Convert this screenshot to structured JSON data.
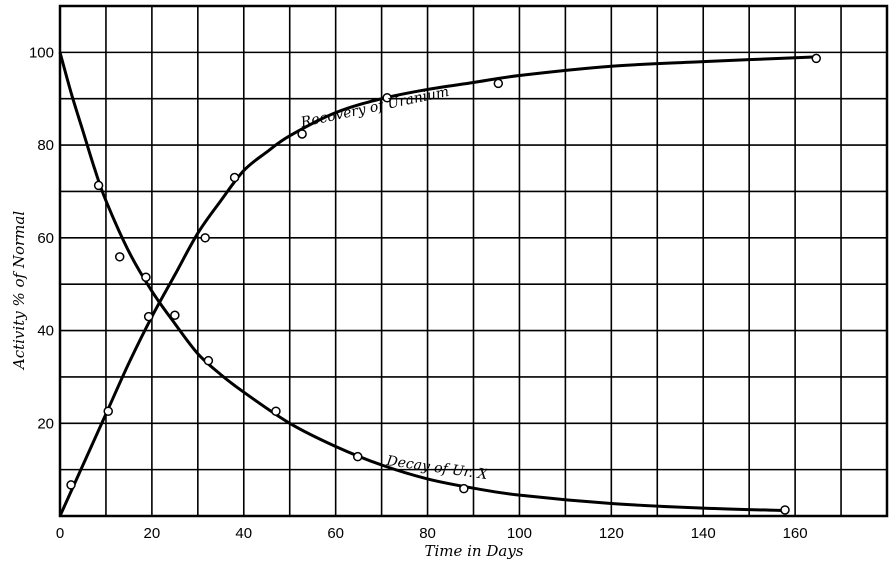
{
  "chart_data": {
    "type": "scatter",
    "title": "",
    "xlabel": "Time in Days",
    "ylabel": "Activity % of Normal",
    "xlim": [
      0,
      180
    ],
    "ylim": [
      0,
      110
    ],
    "grid": true,
    "grid_step": {
      "x": 10,
      "y": 10
    },
    "x_ticks": [
      0,
      20,
      40,
      60,
      80,
      100,
      120,
      140,
      160
    ],
    "y_ticks": [
      20,
      40,
      60,
      80,
      100
    ],
    "series": [
      {
        "name": "Recovery of Uranium",
        "points": [
          [
            2.4,
            6.7
          ],
          [
            10.5,
            22.6
          ],
          [
            19.3,
            43
          ],
          [
            31.6,
            60
          ],
          [
            38,
            73
          ],
          [
            52.7,
            82.4
          ],
          [
            71.2,
            90.2
          ],
          [
            95.4,
            93.3
          ],
          [
            164.6,
            98.7
          ]
        ],
        "curve": [
          [
            0,
            0
          ],
          [
            5,
            11
          ],
          [
            10,
            22
          ],
          [
            15,
            33
          ],
          [
            20,
            43
          ],
          [
            25,
            52
          ],
          [
            30,
            61
          ],
          [
            35,
            68
          ],
          [
            40,
            74.5
          ],
          [
            45,
            78.5
          ],
          [
            50,
            82
          ],
          [
            60,
            87
          ],
          [
            70,
            90
          ],
          [
            80,
            92
          ],
          [
            90,
            93.5
          ],
          [
            100,
            95
          ],
          [
            120,
            97
          ],
          [
            140,
            98
          ],
          [
            164,
            99
          ]
        ]
      },
      {
        "name": "Decay of Ur. X",
        "points": [
          [
            8.4,
            71.3
          ],
          [
            13,
            55.9
          ],
          [
            18.7,
            51.5
          ],
          [
            25,
            43.3
          ],
          [
            32.3,
            33.5
          ],
          [
            47,
            22.6
          ],
          [
            64.8,
            12.8
          ],
          [
            87.9,
            5.9
          ],
          [
            157.8,
            1.3
          ]
        ],
        "curve": [
          [
            0,
            100
          ],
          [
            2.5,
            91
          ],
          [
            5,
            83
          ],
          [
            7.5,
            75
          ],
          [
            10,
            68
          ],
          [
            15,
            57
          ],
          [
            20,
            48.5
          ],
          [
            25,
            41.5
          ],
          [
            30,
            35
          ],
          [
            35,
            30.5
          ],
          [
            40,
            26.7
          ],
          [
            50,
            20
          ],
          [
            60,
            15
          ],
          [
            70,
            11
          ],
          [
            80,
            8
          ],
          [
            90,
            6
          ],
          [
            100,
            4.5
          ],
          [
            120,
            2.7
          ],
          [
            140,
            1.7
          ],
          [
            157,
            1.2
          ]
        ]
      }
    ]
  }
}
